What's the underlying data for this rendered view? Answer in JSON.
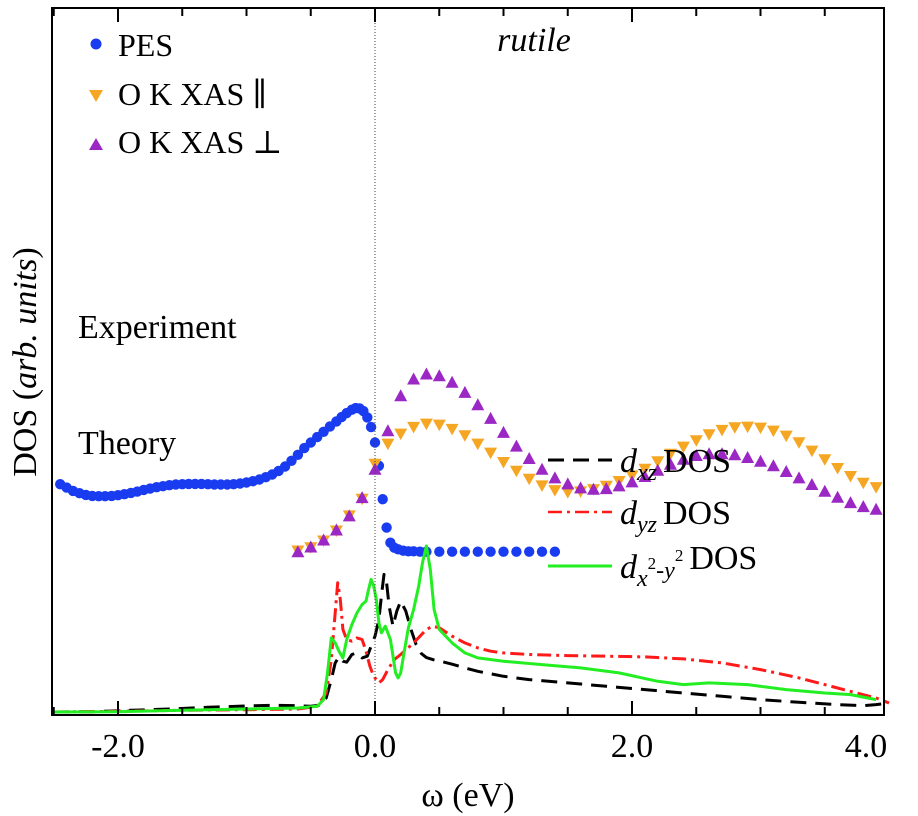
{
  "chart_data": {
    "type": "scatter",
    "title": "",
    "annotation": "rutile",
    "xlabel": "ω (eV)",
    "ylabel_main": "DOS (",
    "ylabel_italic": "arb. units",
    "ylabel_close": ")",
    "xlim": [
      -2.5,
      4.0
    ],
    "ylim": [
      0,
      100
    ],
    "xticks": [
      -2.0,
      0.0,
      2.0,
      4.0
    ],
    "xtick_labels": [
      "-2.0",
      "0.0",
      "2.0",
      "4.0"
    ],
    "fermi_level": 0.0,
    "section_labels": {
      "experiment": "Experiment",
      "theory": "Theory"
    },
    "legend_top": [
      {
        "name": "PES",
        "text": "PES",
        "color": "#1a3cf0",
        "marker": "circle"
      },
      {
        "name": "O K XAS ∥",
        "text": "O K XAS ∥",
        "color": "#f5a623",
        "marker": "triangle-down"
      },
      {
        "name": "O K XAS ⊥",
        "text": "O K XAS ⊥",
        "color": "#9b27c4",
        "marker": "triangle-up"
      }
    ],
    "legend_bottom": [
      {
        "name": "d_xz DOS",
        "base": "d",
        "sub": "xz",
        "suffix": "DOS",
        "color": "#000000",
        "dash": "16,9"
      },
      {
        "name": "d_yz DOS",
        "base": "d",
        "sub": "yz",
        "suffix": "DOS",
        "color": "#ff1a1a",
        "dash": "14,5,3,5"
      },
      {
        "name": "d_x2-y2 DOS",
        "base": "d",
        "sub1": "x",
        "sup1": "2",
        "mid": "-y",
        "sup2": "2",
        "suffix": "DOS",
        "color": "#22ee22",
        "dash": ""
      }
    ],
    "series": [
      {
        "name": "PES",
        "style": "scatter",
        "marker": "circle",
        "color": "#1a3cf0",
        "x": [
          -2.45,
          -2.4,
          -2.35,
          -2.3,
          -2.25,
          -2.2,
          -2.15,
          -2.1,
          -2.05,
          -2.0,
          -1.95,
          -1.9,
          -1.85,
          -1.8,
          -1.75,
          -1.7,
          -1.65,
          -1.6,
          -1.55,
          -1.5,
          -1.45,
          -1.4,
          -1.35,
          -1.3,
          -1.25,
          -1.2,
          -1.15,
          -1.1,
          -1.05,
          -1.0,
          -0.95,
          -0.9,
          -0.85,
          -0.8,
          -0.75,
          -0.7,
          -0.65,
          -0.6,
          -0.55,
          -0.5,
          -0.45,
          -0.4,
          -0.35,
          -0.3,
          -0.26,
          -0.22,
          -0.18,
          -0.15,
          -0.12,
          -0.09,
          -0.06,
          -0.03,
          0.0,
          0.03,
          0.06,
          0.09,
          0.12,
          0.15,
          0.18,
          0.22,
          0.26,
          0.3,
          0.35,
          0.4,
          0.5,
          0.6,
          0.7,
          0.8,
          0.9,
          1.0,
          1.1,
          1.2,
          1.3,
          1.4
        ],
        "y": [
          68.5,
          67.5,
          66.5,
          65.8,
          65.3,
          65.0,
          64.9,
          64.9,
          65.0,
          65.2,
          65.5,
          65.9,
          66.3,
          66.8,
          67.2,
          67.6,
          67.9,
          68.2,
          68.4,
          68.5,
          68.6,
          68.6,
          68.6,
          68.5,
          68.4,
          68.4,
          68.4,
          68.5,
          68.7,
          69.0,
          69.4,
          69.9,
          70.6,
          71.4,
          72.5,
          73.8,
          75.5,
          77.3,
          79.3,
          81.0,
          82.6,
          84.2,
          85.8,
          87.3,
          88.6,
          89.8,
          90.8,
          91.3,
          91.2,
          90.4,
          88.5,
          85.6,
          81.0,
          74.0,
          64.0,
          55.5,
          51.0,
          49.5,
          49.0,
          48.6,
          48.4,
          48.4,
          48.3,
          48.3,
          48.3,
          48.3,
          48.3,
          48.3,
          48.3,
          48.3,
          48.3,
          48.3,
          48.3,
          48.3
        ]
      },
      {
        "name": "O K XAS ∥",
        "style": "scatter",
        "marker": "triangle-down",
        "color": "#f5a623",
        "x": [
          -0.6,
          -0.5,
          -0.4,
          -0.3,
          -0.2,
          -0.1,
          0.0,
          0.1,
          0.2,
          0.3,
          0.4,
          0.5,
          0.6,
          0.7,
          0.8,
          0.9,
          1.0,
          1.1,
          1.2,
          1.3,
          1.4,
          1.5,
          1.6,
          1.7,
          1.8,
          1.9,
          2.0,
          2.1,
          2.2,
          2.3,
          2.4,
          2.5,
          2.6,
          2.7,
          2.8,
          2.9,
          3.0,
          3.1,
          3.2,
          3.3,
          3.4,
          3.5,
          3.6,
          3.7,
          3.8,
          3.9
        ],
        "y": [
          48.5,
          49.5,
          51.5,
          54.5,
          59.0,
          64.0,
          74.5,
          80.5,
          83.5,
          85.5,
          86.5,
          86.2,
          84.9,
          83.0,
          80.5,
          77.8,
          75.0,
          72.4,
          70.0,
          68.0,
          66.6,
          66.0,
          66.2,
          66.9,
          67.9,
          69.3,
          71.0,
          73.0,
          75.2,
          77.5,
          79.6,
          81.5,
          83.3,
          84.6,
          85.4,
          85.6,
          85.3,
          84.4,
          82.9,
          80.9,
          78.4,
          75.8,
          73.2,
          70.8,
          68.8,
          67.5
        ]
      },
      {
        "name": "O K XAS ⊥",
        "style": "scatter",
        "marker": "triangle-up",
        "color": "#9b27c4",
        "x": [
          -0.6,
          -0.5,
          -0.4,
          -0.3,
          -0.2,
          -0.1,
          0.0,
          0.1,
          0.2,
          0.3,
          0.4,
          0.5,
          0.6,
          0.7,
          0.8,
          0.9,
          1.0,
          1.1,
          1.2,
          1.3,
          1.4,
          1.5,
          1.6,
          1.7,
          1.8,
          1.9,
          2.0,
          2.1,
          2.2,
          2.3,
          2.4,
          2.5,
          2.6,
          2.7,
          2.8,
          2.9,
          3.0,
          3.1,
          3.2,
          3.3,
          3.4,
          3.5,
          3.6,
          3.7,
          3.8,
          3.9
        ],
        "y": [
          48.3,
          49.7,
          51.8,
          54.8,
          59.0,
          64.5,
          73.0,
          84.5,
          95.0,
          100.0,
          101.5,
          101.0,
          99.0,
          96.0,
          92.3,
          88.2,
          84.0,
          79.9,
          76.2,
          73.0,
          70.4,
          68.6,
          67.4,
          67.0,
          67.2,
          68.0,
          69.2,
          70.8,
          72.7,
          74.5,
          76.0,
          77.1,
          77.6,
          77.6,
          77.3,
          76.5,
          75.4,
          74.0,
          72.3,
          70.4,
          68.4,
          66.4,
          64.6,
          63.0,
          61.8,
          61.0
        ]
      },
      {
        "name": "d_xz DOS",
        "style": "line",
        "color": "#000000",
        "dash": "16,9",
        "x": [
          -2.5,
          -2.2,
          -1.9,
          -1.6,
          -1.3,
          -1.0,
          -0.8,
          -0.6,
          -0.5,
          -0.42,
          -0.38,
          -0.34,
          -0.31,
          -0.28,
          -0.25,
          -0.22,
          -0.18,
          -0.14,
          -0.1,
          -0.06,
          -0.03,
          0.0,
          0.03,
          0.05,
          0.07,
          0.09,
          0.11,
          0.14,
          0.17,
          0.2,
          0.24,
          0.28,
          0.32,
          0.36,
          0.4,
          0.45,
          0.5,
          0.6,
          0.7,
          0.8,
          1.0,
          1.2,
          1.5,
          1.8,
          2.1,
          2.4,
          2.7,
          3.0,
          3.3,
          3.6,
          3.8,
          3.9,
          4.0
        ],
        "y": [
          0.3,
          0.4,
          0.8,
          1.2,
          1.7,
          2.1,
          2.3,
          2.2,
          2.0,
          2.4,
          4.5,
          10.0,
          15.0,
          16.8,
          15.5,
          15.2,
          17.5,
          18.0,
          16.5,
          17.0,
          20.0,
          23.0,
          28.0,
          35.0,
          41.5,
          39.0,
          32.0,
          26.0,
          30.5,
          33.5,
          30.5,
          25.0,
          20.5,
          17.8,
          16.6,
          16.0,
          15.6,
          14.6,
          13.5,
          12.5,
          11.0,
          10.0,
          9.0,
          8.0,
          7.0,
          6.0,
          5.0,
          4.0,
          3.2,
          2.5,
          2.2,
          2.5,
          3.0
        ]
      },
      {
        "name": "d_yz DOS",
        "style": "line",
        "color": "#ff1a1a",
        "dash": "14,5,3,5",
        "x": [
          -2.5,
          -2.0,
          -1.5,
          -1.0,
          -0.6,
          -0.45,
          -0.38,
          -0.34,
          -0.31,
          -0.29,
          -0.27,
          -0.25,
          -0.22,
          -0.18,
          -0.14,
          -0.1,
          -0.07,
          -0.04,
          -0.02,
          0.0,
          0.03,
          0.06,
          0.1,
          0.15,
          0.2,
          0.3,
          0.4,
          0.45,
          0.5,
          0.6,
          0.7,
          0.8,
          0.9,
          1.0,
          1.2,
          1.5,
          1.8,
          2.1,
          2.4,
          2.7,
          3.0,
          3.3,
          3.6,
          3.9,
          4.0
        ],
        "y": [
          0.3,
          0.5,
          0.8,
          1.0,
          1.2,
          2.0,
          6.0,
          16.0,
          30.0,
          39.0,
          34.0,
          25.0,
          22.0,
          21.5,
          22.5,
          22.0,
          18.5,
          14.0,
          12.0,
          10.5,
          9.0,
          10.0,
          13.0,
          16.0,
          17.5,
          21.0,
          25.0,
          26.0,
          25.5,
          23.0,
          21.0,
          19.5,
          18.5,
          18.0,
          17.5,
          17.2,
          17.0,
          16.8,
          16.2,
          15.0,
          13.0,
          10.5,
          7.5,
          4.5,
          3.0
        ]
      },
      {
        "name": "d_x2-y2 DOS",
        "style": "line",
        "color": "#22ee22",
        "dash": "",
        "x": [
          -2.5,
          -2.0,
          -1.5,
          -1.0,
          -0.6,
          -0.45,
          -0.4,
          -0.37,
          -0.34,
          -0.31,
          -0.28,
          -0.25,
          -0.22,
          -0.18,
          -0.14,
          -0.1,
          -0.07,
          -0.05,
          -0.03,
          -0.01,
          0.01,
          0.03,
          0.05,
          0.08,
          0.12,
          0.16,
          0.18,
          0.2,
          0.23,
          0.26,
          0.3,
          0.34,
          0.37,
          0.4,
          0.43,
          0.46,
          0.5,
          0.6,
          0.7,
          0.8,
          1.0,
          1.3,
          1.6,
          1.9,
          2.2,
          2.4,
          2.6,
          2.9,
          3.2,
          3.5,
          3.7,
          3.9
        ],
        "y": [
          0.3,
          0.4,
          0.8,
          1.2,
          1.5,
          2.0,
          4.0,
          12.0,
          22.5,
          21.0,
          18.5,
          16.5,
          22.0,
          26.5,
          30.0,
          32.5,
          33.5,
          37.0,
          40.0,
          38.0,
          34.0,
          27.0,
          24.0,
          26.0,
          22.0,
          12.0,
          10.5,
          12.0,
          19.0,
          25.5,
          31.0,
          38.0,
          45.0,
          50.0,
          43.0,
          31.0,
          25.0,
          21.0,
          18.0,
          16.5,
          15.5,
          14.5,
          13.5,
          12.0,
          9.5,
          8.5,
          9.0,
          8.5,
          7.0,
          6.0,
          5.5,
          4.0
        ]
      }
    ]
  }
}
